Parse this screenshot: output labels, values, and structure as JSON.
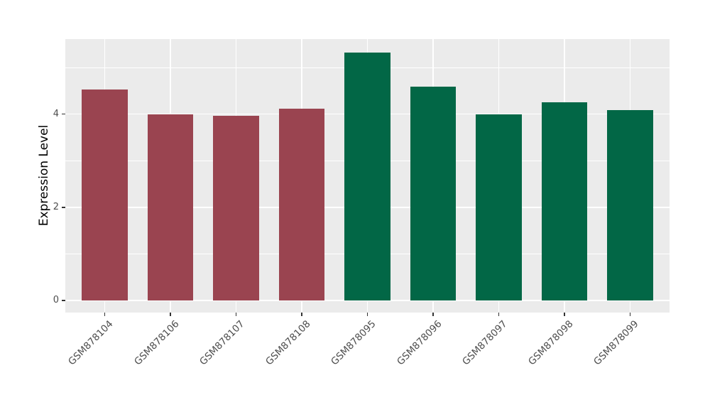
{
  "chart_data": {
    "type": "bar",
    "title": "",
    "xlabel": "",
    "ylabel": "Expression Level",
    "categories": [
      "GSM878104",
      "GSM878106",
      "GSM878107",
      "GSM878108",
      "GSM878095",
      "GSM878096",
      "GSM878097",
      "GSM878098",
      "GSM878099"
    ],
    "values": [
      4.52,
      3.99,
      3.97,
      4.12,
      5.32,
      4.59,
      4.0,
      4.25,
      4.08
    ],
    "bar_colors": [
      "#9A4450",
      "#9A4450",
      "#9A4450",
      "#9A4450",
      "#026746",
      "#026746",
      "#026746",
      "#026746",
      "#026746"
    ],
    "yticks": [
      0,
      2,
      4
    ],
    "minor_yticks": [
      1,
      3,
      5
    ],
    "ylim": [
      -0.26,
      5.61
    ],
    "bar_width_fraction": 0.7,
    "grid": true,
    "legend_position": "none",
    "panel_bg": "#EBEBEB",
    "grid_color": "#FFFFFF",
    "tick_label_color": "#4D4D4D",
    "axis_title_color": "#000000"
  }
}
